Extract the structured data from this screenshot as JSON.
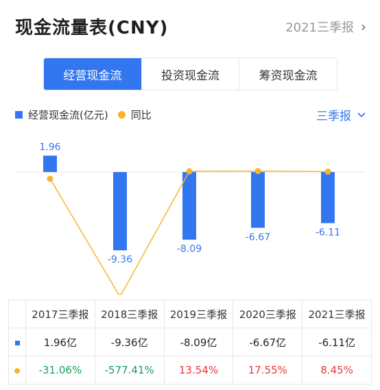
{
  "header": {
    "title": "现金流量表(CNY)",
    "period_link": "2021三季报"
  },
  "tabs": [
    {
      "label": "经营现金流",
      "active": true
    },
    {
      "label": "投资现金流",
      "active": false
    },
    {
      "label": "筹资现金流",
      "active": false
    }
  ],
  "legend": {
    "series1": "经营现金流(亿元)",
    "series2": "同比"
  },
  "period_select": "三季报",
  "colors": {
    "accent": "#3377f0",
    "line": "#f5b52f",
    "negative": "#13a15c",
    "positive": "#e5383b"
  },
  "chart_data": {
    "type": "bar",
    "categories": [
      "2017三季报",
      "2018三季报",
      "2019三季报",
      "2020三季报",
      "2021三季报"
    ],
    "series": [
      {
        "name": "经营现金流(亿元)",
        "values": [
          1.96,
          -9.36,
          -8.09,
          -6.67,
          -6.11
        ]
      },
      {
        "name": "同比",
        "values": [
          -31.06,
          -577.41,
          13.54,
          17.55,
          8.45
        ]
      }
    ],
    "bar_labels": [
      "1.96",
      "-9.36",
      "-8.09",
      "-6.67",
      "-6.11"
    ]
  },
  "table": {
    "headers": [
      "2017三季报",
      "2018三季报",
      "2019三季报",
      "2020三季报",
      "2021三季报"
    ],
    "row1": [
      "1.96亿",
      "-9.36亿",
      "-8.09亿",
      "-6.67亿",
      "-6.11亿"
    ],
    "row2": [
      "-31.06%",
      "-577.41%",
      "13.54%",
      "17.55%",
      "8.45%"
    ]
  }
}
